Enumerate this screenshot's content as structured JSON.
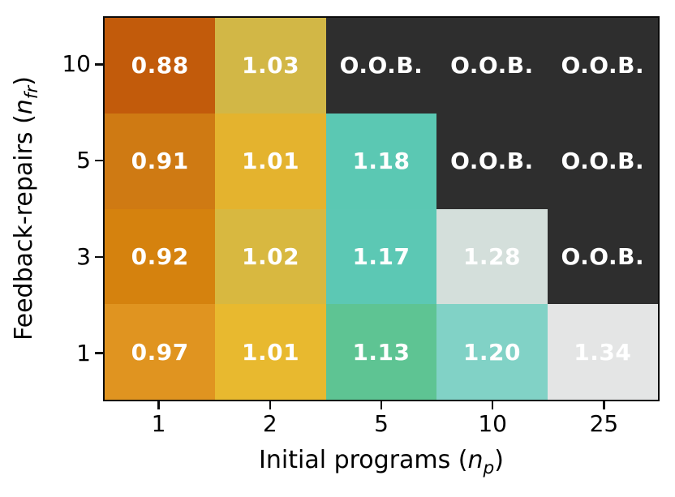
{
  "figure": {
    "background": "#ffffff",
    "border_color": "#0b0b0b",
    "cell_text_color": "#ffffff",
    "oob_color": "#2e2e2e"
  },
  "chart_data": {
    "type": "heatmap",
    "title": "",
    "xlabel": "Initial programs (n_p)",
    "ylabel": "Feedback-repairs (n_fr)",
    "xlabel_parts": {
      "prefix": "Initial programs (",
      "var": "n",
      "sub": "p",
      "suffix": ")"
    },
    "ylabel_parts": {
      "prefix": "Feedback-repairs (",
      "var": "n",
      "sub": "fr",
      "suffix": ")"
    },
    "x_categories": [
      "1",
      "2",
      "5",
      "10",
      "25"
    ],
    "y_categories": [
      "10",
      "5",
      "3",
      "1"
    ],
    "oob_label": "O.O.B.",
    "legend": "none",
    "grid": "off",
    "rows": [
      {
        "y": "10",
        "cells": [
          {
            "value": "0.88",
            "color": "#c25b0b",
            "oob": false
          },
          {
            "value": "1.03",
            "color": "#d2b746",
            "oob": false
          },
          {
            "value": "O.O.B.",
            "color": "#2e2e2e",
            "oob": true
          },
          {
            "value": "O.O.B.",
            "color": "#2e2e2e",
            "oob": true
          },
          {
            "value": "O.O.B.",
            "color": "#2e2e2e",
            "oob": true
          }
        ]
      },
      {
        "y": "5",
        "cells": [
          {
            "value": "0.91",
            "color": "#cf7a13",
            "oob": false
          },
          {
            "value": "1.01",
            "color": "#e4b32e",
            "oob": false
          },
          {
            "value": "1.18",
            "color": "#5bc8b3",
            "oob": false
          },
          {
            "value": "O.O.B.",
            "color": "#2e2e2e",
            "oob": true
          },
          {
            "value": "O.O.B.",
            "color": "#2e2e2e",
            "oob": true
          }
        ]
      },
      {
        "y": "3",
        "cells": [
          {
            "value": "0.92",
            "color": "#d5820e",
            "oob": false
          },
          {
            "value": "1.02",
            "color": "#d8b840",
            "oob": false
          },
          {
            "value": "1.17",
            "color": "#5cc8b4",
            "oob": false
          },
          {
            "value": "1.28",
            "color": "#d4dfdb",
            "oob": false
          },
          {
            "value": "O.O.B.",
            "color": "#2e2e2e",
            "oob": true
          }
        ]
      },
      {
        "y": "1",
        "cells": [
          {
            "value": "0.97",
            "color": "#e09420",
            "oob": false
          },
          {
            "value": "1.01",
            "color": "#e8b92f",
            "oob": false
          },
          {
            "value": "1.13",
            "color": "#5ec493",
            "oob": false
          },
          {
            "value": "1.20",
            "color": "#81d2c6",
            "oob": false
          },
          {
            "value": "1.34",
            "color": "#e4e5e5",
            "oob": false
          }
        ]
      }
    ]
  }
}
